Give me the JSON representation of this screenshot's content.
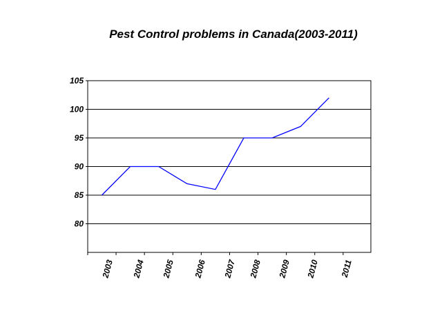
{
  "chart_data": {
    "type": "line",
    "title": "Pest Control problems in Canada(2003-2011)",
    "xlabel": "",
    "ylabel": "",
    "categories": [
      "2003",
      "2004",
      "2005",
      "2006",
      "2007",
      "2008",
      "2009",
      "2010",
      "2011"
    ],
    "series": [
      {
        "values": [
          85,
          90,
          90,
          87,
          86,
          95,
          95,
          97,
          102
        ]
      }
    ],
    "ylim": [
      75,
      105
    ],
    "yticks": [
      80,
      85,
      90,
      95,
      100,
      105
    ],
    "grid": true,
    "legend": "none",
    "line_color": "#0000ff"
  }
}
